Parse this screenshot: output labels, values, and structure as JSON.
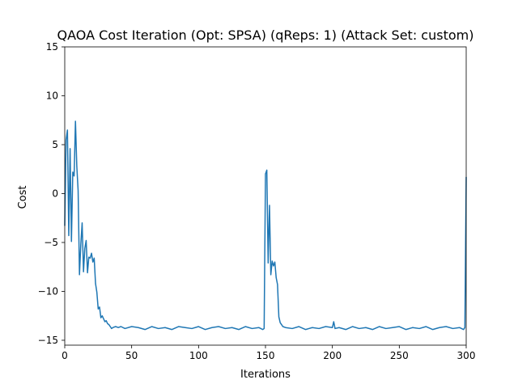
{
  "chart_data": {
    "type": "line",
    "title": "QAOA Cost Iteration (Opt: SPSA) (qReps: 1) (Attack Set: custom)",
    "xlabel": "Iterations",
    "ylabel": "Cost",
    "xlim": [
      0,
      300
    ],
    "ylim": [
      -15.5,
      15
    ],
    "xticks": [
      0,
      50,
      100,
      150,
      200,
      250,
      300
    ],
    "yticks": [
      -15,
      -10,
      -5,
      0,
      5,
      10,
      15
    ],
    "grid": false,
    "series": [
      {
        "name": "cost",
        "color": "#1f77b4",
        "x": [
          0,
          1,
          2,
          3,
          4,
          5,
          6,
          7,
          8,
          9,
          10,
          11,
          12,
          13,
          14,
          15,
          16,
          17,
          18,
          19,
          20,
          21,
          22,
          23,
          24,
          25,
          26,
          27,
          28,
          29,
          30,
          31,
          32,
          33,
          34,
          35,
          36,
          38,
          40,
          42,
          45,
          50,
          55,
          60,
          65,
          70,
          75,
          80,
          85,
          90,
          95,
          100,
          105,
          110,
          115,
          120,
          125,
          130,
          135,
          140,
          145,
          148,
          149,
          150,
          151,
          152,
          153,
          154,
          155,
          156,
          157,
          158,
          159,
          160,
          161,
          162,
          163,
          165,
          170,
          175,
          180,
          185,
          190,
          195,
          200,
          201,
          202,
          205,
          210,
          215,
          220,
          225,
          230,
          235,
          240,
          245,
          250,
          255,
          260,
          265,
          270,
          275,
          280,
          285,
          290,
          295,
          298,
          299,
          300
        ],
        "y": [
          -3.3,
          5.5,
          6.5,
          -4.3,
          4.6,
          -4.9,
          2.2,
          1.8,
          7.4,
          2.8,
          0.3,
          -8.3,
          -5.2,
          -3.0,
          -8.0,
          -5.6,
          -4.8,
          -8.1,
          -6.5,
          -6.6,
          -6.1,
          -7.0,
          -6.6,
          -9.2,
          -10.1,
          -11.8,
          -11.6,
          -12.7,
          -12.5,
          -12.8,
          -13.1,
          -13.0,
          -13.3,
          -13.4,
          -13.6,
          -13.8,
          -13.7,
          -13.6,
          -13.7,
          -13.6,
          -13.8,
          -13.6,
          -13.7,
          -13.9,
          -13.6,
          -13.8,
          -13.7,
          -13.9,
          -13.6,
          -13.7,
          -13.8,
          -13.6,
          -13.9,
          -13.7,
          -13.6,
          -13.8,
          -13.7,
          -13.9,
          -13.6,
          -13.8,
          -13.7,
          -13.9,
          -13.8,
          2.0,
          2.4,
          -7.1,
          -1.2,
          -8.3,
          -6.9,
          -7.4,
          -7.0,
          -8.6,
          -9.3,
          -12.6,
          -13.2,
          -13.4,
          -13.6,
          -13.7,
          -13.8,
          -13.6,
          -13.9,
          -13.7,
          -13.8,
          -13.6,
          -13.7,
          -13.1,
          -13.8,
          -13.7,
          -13.9,
          -13.6,
          -13.8,
          -13.7,
          -13.9,
          -13.6,
          -13.8,
          -13.7,
          -13.6,
          -13.9,
          -13.7,
          -13.8,
          -13.6,
          -13.9,
          -13.7,
          -13.6,
          -13.8,
          -13.7,
          -13.9,
          -13.7,
          1.7
        ]
      }
    ]
  }
}
